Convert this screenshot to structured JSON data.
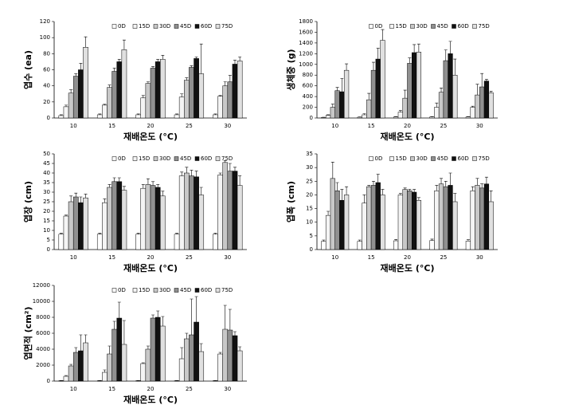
{
  "chart_data": [
    {
      "type": "bar",
      "y_label": "엽수 (ea)",
      "x_label": "재배온도 (°C)",
      "categories": [
        "10",
        "15",
        "20",
        "25",
        "30"
      ],
      "ylim": [
        0,
        120
      ],
      "yticks": [
        0,
        20,
        40,
        60,
        80,
        100,
        120
      ],
      "legend": "top",
      "series": [
        {
          "name": "0D",
          "color": "#ffffff",
          "values": [
            3,
            4,
            4,
            4,
            4
          ],
          "errors": [
            1,
            1,
            1,
            1,
            1
          ]
        },
        {
          "name": "15D",
          "color": "#f4f4f4",
          "values": [
            14,
            16,
            25,
            26,
            27
          ],
          "errors": [
            2,
            1,
            3,
            4,
            1
          ]
        },
        {
          "name": "30D",
          "color": "#c8c8c8",
          "values": [
            31,
            38,
            43,
            47,
            40
          ],
          "errors": [
            4,
            3,
            2,
            3,
            5
          ]
        },
        {
          "name": "45D",
          "color": "#909090",
          "values": [
            52,
            58,
            62,
            63,
            45
          ],
          "errors": [
            3,
            4,
            2,
            2,
            8
          ]
        },
        {
          "name": "60D",
          "color": "#111111",
          "values": [
            60,
            70,
            70,
            74,
            67
          ],
          "errors": [
            8,
            3,
            3,
            2,
            5
          ]
        },
        {
          "name": "75D",
          "color": "#e0e0e0",
          "values": [
            88,
            85,
            73,
            55,
            71
          ],
          "errors": [
            13,
            12,
            5,
            37,
            5
          ]
        }
      ]
    },
    {
      "type": "bar",
      "y_label": "생체중 (g)",
      "x_label": "재배온도 (°C)",
      "categories": [
        "10",
        "15",
        "20",
        "25",
        "30"
      ],
      "ylim": [
        0,
        1800
      ],
      "yticks": [
        0,
        200,
        400,
        600,
        800,
        1000,
        1200,
        1400,
        1600,
        1800
      ],
      "legend": "top",
      "series": [
        {
          "name": "0D",
          "color": "#ffffff",
          "values": [
            10,
            15,
            20,
            20,
            20
          ],
          "errors": [
            5,
            5,
            5,
            5,
            5
          ]
        },
        {
          "name": "15D",
          "color": "#f4f4f4",
          "values": [
            50,
            60,
            110,
            200,
            200
          ],
          "errors": [
            10,
            20,
            30,
            80,
            20
          ]
        },
        {
          "name": "30D",
          "color": "#c8c8c8",
          "values": [
            200,
            340,
            370,
            480,
            430
          ],
          "errors": [
            60,
            120,
            150,
            80,
            200
          ]
        },
        {
          "name": "45D",
          "color": "#909090",
          "values": [
            510,
            890,
            1020,
            1070,
            580
          ],
          "errors": [
            60,
            150,
            100,
            200,
            250
          ]
        },
        {
          "name": "60D",
          "color": "#111111",
          "values": [
            490,
            1100,
            1220,
            1200,
            690
          ],
          "errors": [
            250,
            200,
            150,
            230,
            30
          ]
        },
        {
          "name": "75D",
          "color": "#e0e0e0",
          "values": [
            890,
            1450,
            1230,
            800,
            470
          ],
          "errors": [
            120,
            200,
            150,
            300,
            30
          ]
        }
      ]
    },
    {
      "type": "bar",
      "y_label": "엽장 (cm)",
      "x_label": "재배온도 (°C)",
      "categories": [
        "10",
        "15",
        "20",
        "25",
        "30"
      ],
      "ylim": [
        0,
        50
      ],
      "yticks": [
        0,
        5,
        10,
        15,
        20,
        25,
        30,
        35,
        40,
        45,
        50
      ],
      "legend": "top",
      "series": [
        {
          "name": "0D",
          "color": "#ffffff",
          "values": [
            8,
            8,
            8,
            8,
            8
          ],
          "errors": [
            0.5,
            0.5,
            0.5,
            0.5,
            0.5
          ]
        },
        {
          "name": "15D",
          "color": "#f4f4f4",
          "values": [
            17.5,
            24.5,
            32,
            38.5,
            39
          ],
          "errors": [
            0.5,
            2,
            2,
            2,
            1
          ]
        },
        {
          "name": "30D",
          "color": "#c8c8c8",
          "values": [
            25,
            32.5,
            34,
            40,
            45.5
          ],
          "errors": [
            3,
            1.5,
            3,
            3,
            1
          ]
        },
        {
          "name": "45D",
          "color": "#909090",
          "values": [
            27.5,
            35.5,
            33.5,
            38.5,
            41
          ],
          "errors": [
            2,
            2,
            2,
            3,
            4
          ]
        },
        {
          "name": "60D",
          "color": "#111111",
          "values": [
            24.5,
            35.5,
            32.5,
            38,
            41
          ],
          "errors": [
            3,
            2,
            1.5,
            3,
            2
          ]
        },
        {
          "name": "75D",
          "color": "#e0e0e0",
          "values": [
            27,
            31,
            28,
            28.5,
            33.5
          ],
          "errors": [
            2,
            2,
            2.5,
            4,
            5
          ]
        }
      ]
    },
    {
      "type": "bar",
      "y_label": "엽폭 (cm)",
      "x_label": "재배온도 (°C)",
      "categories": [
        "10",
        "15",
        "20",
        "25",
        "30"
      ],
      "ylim": [
        0,
        35
      ],
      "yticks": [
        0,
        5,
        10,
        15,
        20,
        25,
        30,
        35
      ],
      "legend": "top",
      "series": [
        {
          "name": "0D",
          "color": "#ffffff",
          "values": [
            3,
            3,
            3.2,
            3.3,
            3.1
          ],
          "errors": [
            0.5,
            0.5,
            0.5,
            0.5,
            0.5
          ]
        },
        {
          "name": "15D",
          "color": "#f4f4f4",
          "values": [
            12.5,
            17,
            20,
            21.5,
            21.5
          ],
          "errors": [
            1.5,
            3,
            0.5,
            2,
            1.5
          ]
        },
        {
          "name": "30D",
          "color": "#c8c8c8",
          "values": [
            26,
            23,
            22,
            24,
            23.5
          ],
          "errors": [
            6,
            0.5,
            0.5,
            2,
            2.5
          ]
        },
        {
          "name": "45D",
          "color": "#909090",
          "values": [
            21.5,
            23.5,
            21.5,
            23,
            22.5
          ],
          "errors": [
            3,
            1.5,
            0.5,
            2,
            1.5
          ]
        },
        {
          "name": "60D",
          "color": "#111111",
          "values": [
            18,
            24.5,
            21,
            23.5,
            24
          ],
          "errors": [
            4,
            3,
            1,
            4.5,
            2.5
          ]
        },
        {
          "name": "75D",
          "color": "#e0e0e0",
          "values": [
            20,
            20,
            18,
            17.5,
            17.5
          ],
          "errors": [
            3,
            2,
            1,
            3,
            4
          ]
        }
      ]
    },
    {
      "type": "bar",
      "y_label": "엽면적 (cm²)",
      "x_label": "재배온도 (°C)",
      "categories": [
        "10",
        "15",
        "20",
        "25",
        "30"
      ],
      "ylim": [
        0,
        12000
      ],
      "yticks": [
        0,
        2000,
        4000,
        6000,
        8000,
        10000,
        12000
      ],
      "legend": "top",
      "series": [
        {
          "name": "0D",
          "color": "#ffffff",
          "values": [
            50,
            50,
            50,
            50,
            50
          ],
          "errors": [
            20,
            20,
            20,
            20,
            20
          ]
        },
        {
          "name": "15D",
          "color": "#f4f4f4",
          "values": [
            600,
            1100,
            2200,
            2800,
            3400
          ],
          "errors": [
            100,
            300,
            100,
            1400,
            200
          ]
        },
        {
          "name": "30D",
          "color": "#c8c8c8",
          "values": [
            1900,
            3400,
            4000,
            5300,
            6500
          ],
          "errors": [
            200,
            1000,
            400,
            700,
            3000
          ]
        },
        {
          "name": "45D",
          "color": "#909090",
          "values": [
            3600,
            6500,
            7900,
            5800,
            6400
          ],
          "errors": [
            600,
            1000,
            400,
            4500,
            2600
          ]
        },
        {
          "name": "60D",
          "color": "#111111",
          "values": [
            3800,
            7900,
            8000,
            7400,
            5700
          ],
          "errors": [
            2000,
            2000,
            800,
            3200,
            500
          ]
        },
        {
          "name": "75D",
          "color": "#e0e0e0",
          "values": [
            4800,
            4600,
            6900,
            3700,
            3800
          ],
          "errors": [
            1000,
            3000,
            1200,
            1000,
            500
          ]
        }
      ]
    }
  ]
}
